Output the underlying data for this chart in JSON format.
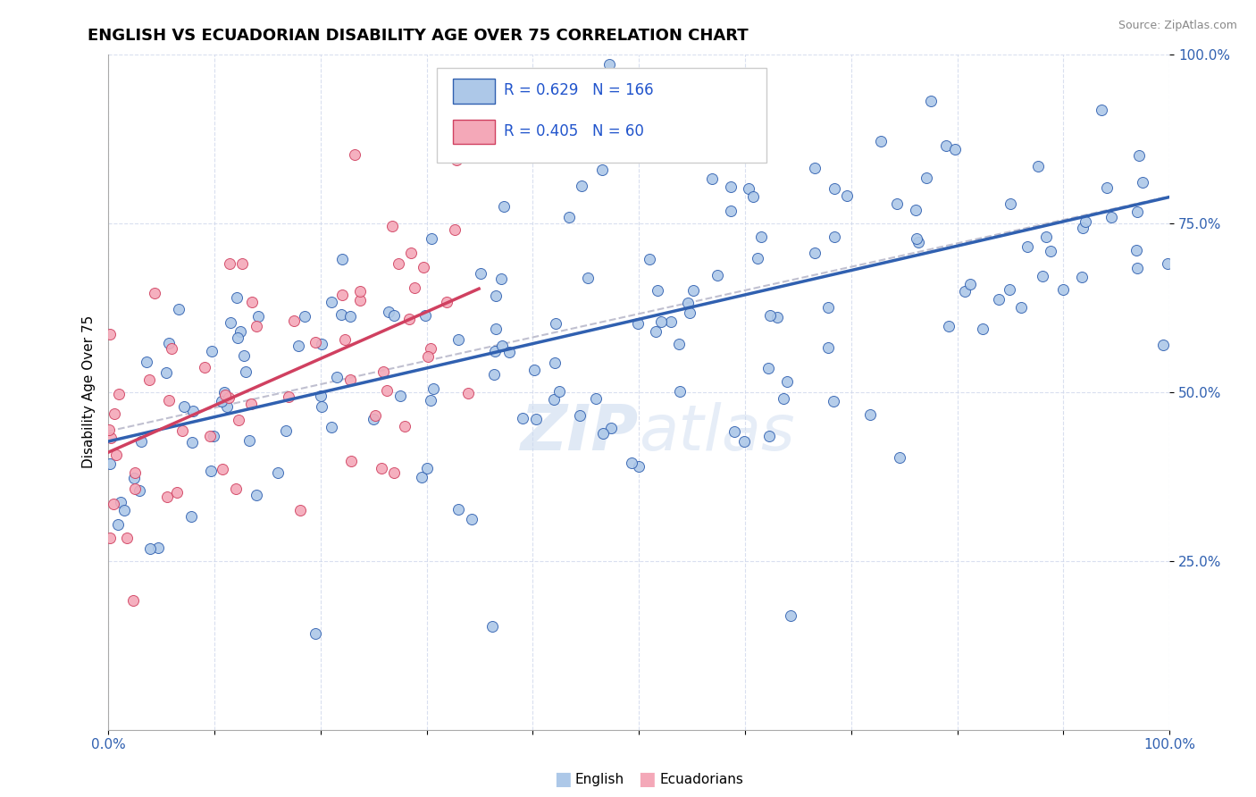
{
  "title": "ENGLISH VS ECUADORIAN DISABILITY AGE OVER 75 CORRELATION CHART",
  "source": "Source: ZipAtlas.com",
  "ylabel": "Disability Age Over 75",
  "xlim": [
    0.0,
    1.0
  ],
  "ylim": [
    0.0,
    1.0
  ],
  "english_R": 0.629,
  "english_N": 166,
  "ecuadorian_R": 0.405,
  "ecuadorian_N": 60,
  "english_color": "#adc8e8",
  "ecuadorian_color": "#f4a8b8",
  "english_line_color": "#3060b0",
  "ecuadorian_line_color": "#d04060",
  "trend_line_color": "#c0c0d0",
  "watermark_color": "#c8d8ee",
  "legend_r_color": "#2255cc",
  "title_fontsize": 13,
  "axis_label_fontsize": 11,
  "tick_fontsize": 11,
  "tick_color": "#3060b0"
}
